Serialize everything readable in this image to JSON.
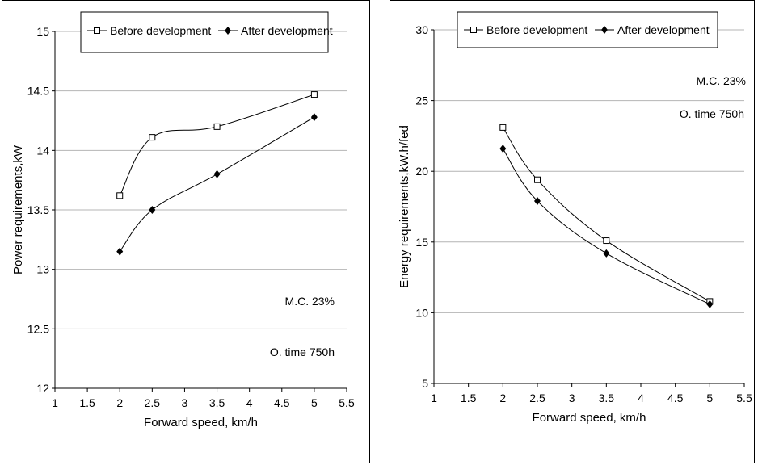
{
  "chart_data": [
    {
      "type": "line",
      "title": "",
      "xlabel": "Forward speed, km/h",
      "ylabel": "Power requirements,kW",
      "xlim": [
        1,
        5.5
      ],
      "ylim": [
        12,
        15
      ],
      "x_ticks": [
        "1",
        "1.5",
        "2",
        "2.5",
        "3",
        "3.5",
        "4",
        "4.5",
        "5",
        "5.5"
      ],
      "y_ticks": [
        "12",
        "12.5",
        "13",
        "13.5",
        "14",
        "14.5",
        "15"
      ],
      "grid": "horizontal",
      "legend_position": "top",
      "series": [
        {
          "name": "Before development",
          "marker": "open-square",
          "x": [
            2,
            2.5,
            3.5,
            5
          ],
          "values": [
            13.62,
            14.11,
            14.2,
            14.47
          ]
        },
        {
          "name": "After development",
          "marker": "filled-diamond",
          "x": [
            2,
            2.5,
            3.5,
            5
          ],
          "values": [
            13.15,
            13.5,
            13.8,
            14.28
          ]
        }
      ],
      "annotations": [
        "M.C. 23%",
        "O. time 750h"
      ]
    },
    {
      "type": "line",
      "title": "",
      "xlabel": "Forward speed, km/h",
      "ylabel": "Energy requirements,kW.h/fed",
      "xlim": [
        1,
        5.5
      ],
      "ylim": [
        5,
        30
      ],
      "x_ticks": [
        "1",
        "1.5",
        "2",
        "2.5",
        "3",
        "3.5",
        "4",
        "4.5",
        "5",
        "5.5"
      ],
      "y_ticks": [
        "5",
        "10",
        "15",
        "20",
        "25",
        "30"
      ],
      "grid": "horizontal",
      "legend_position": "top",
      "series": [
        {
          "name": "Before development",
          "marker": "open-square",
          "x": [
            2,
            2.5,
            3.5,
            5
          ],
          "values": [
            23.1,
            19.4,
            15.1,
            10.8
          ]
        },
        {
          "name": "After development",
          "marker": "filled-diamond",
          "x": [
            2,
            2.5,
            3.5,
            5
          ],
          "values": [
            21.6,
            17.9,
            14.2,
            10.6
          ]
        }
      ],
      "annotations": [
        "M.C. 23%",
        "O. time 750h"
      ]
    }
  ]
}
